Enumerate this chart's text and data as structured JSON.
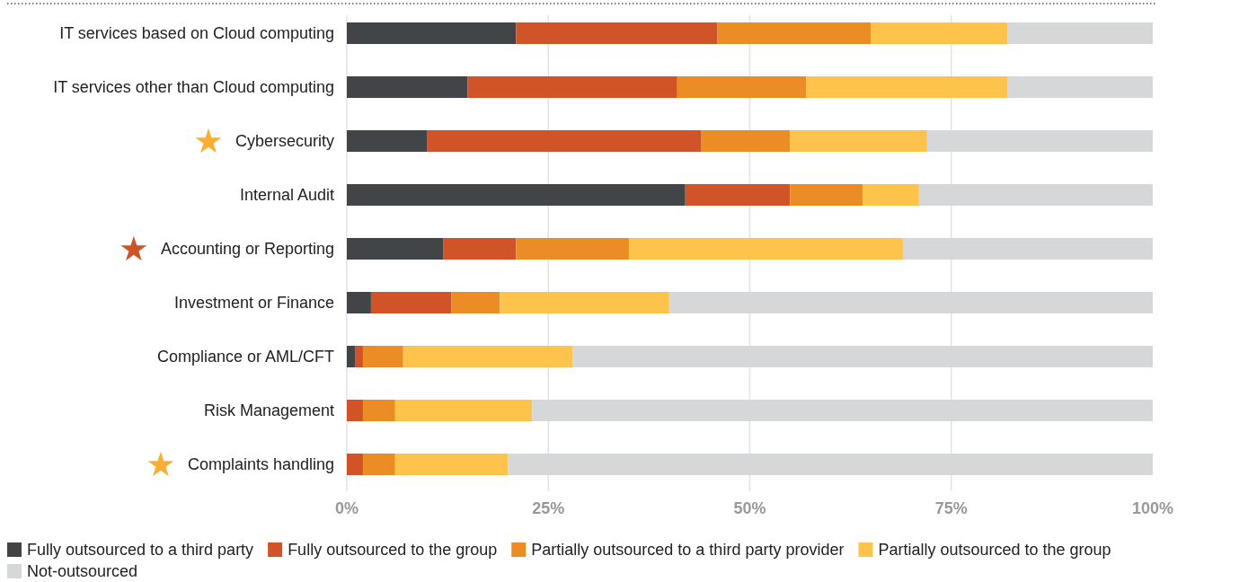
{
  "chart_data": {
    "type": "bar",
    "orientation": "horizontal",
    "stacked": true,
    "categories": [
      "IT services based on Cloud computing",
      "IT services other than Cloud computing",
      "Cybersecurity",
      "Internal Audit",
      "Accounting or Reporting",
      "Investment or Finance",
      "Compliance or AML/CFT",
      "Risk Management",
      "Complaints handling"
    ],
    "series": [
      {
        "name": "Fully outsourced to a third party",
        "color": "#414548",
        "values": [
          21,
          15,
          10,
          42,
          12,
          3,
          1,
          0,
          0
        ]
      },
      {
        "name": "Fully outsourced to the group",
        "color": "#d05427",
        "values": [
          25,
          26,
          34,
          13,
          9,
          10,
          1,
          2,
          2
        ]
      },
      {
        "name": "Partially outsourced to a third party provider",
        "color": "#ec8c24",
        "values": [
          19,
          16,
          11,
          9,
          14,
          6,
          5,
          4,
          4
        ]
      },
      {
        "name": "Partially outsourced to the group",
        "color": "#fdc34a",
        "values": [
          17,
          25,
          17,
          7,
          34,
          21,
          21,
          17,
          14
        ]
      },
      {
        "name": "Not-outsourced",
        "color": "#d6d7d9",
        "values": [
          18,
          18,
          28,
          29,
          31,
          60,
          72,
          77,
          80
        ]
      }
    ],
    "xlim": [
      0,
      100
    ],
    "xticks": [
      {
        "value": 0,
        "label": "0%"
      },
      {
        "value": 25,
        "label": "25%"
      },
      {
        "value": 50,
        "label": "50%"
      },
      {
        "value": 75,
        "label": "75%"
      },
      {
        "value": 100,
        "label": "100%"
      }
    ],
    "grid": "x",
    "legend": "bottom"
  }
}
